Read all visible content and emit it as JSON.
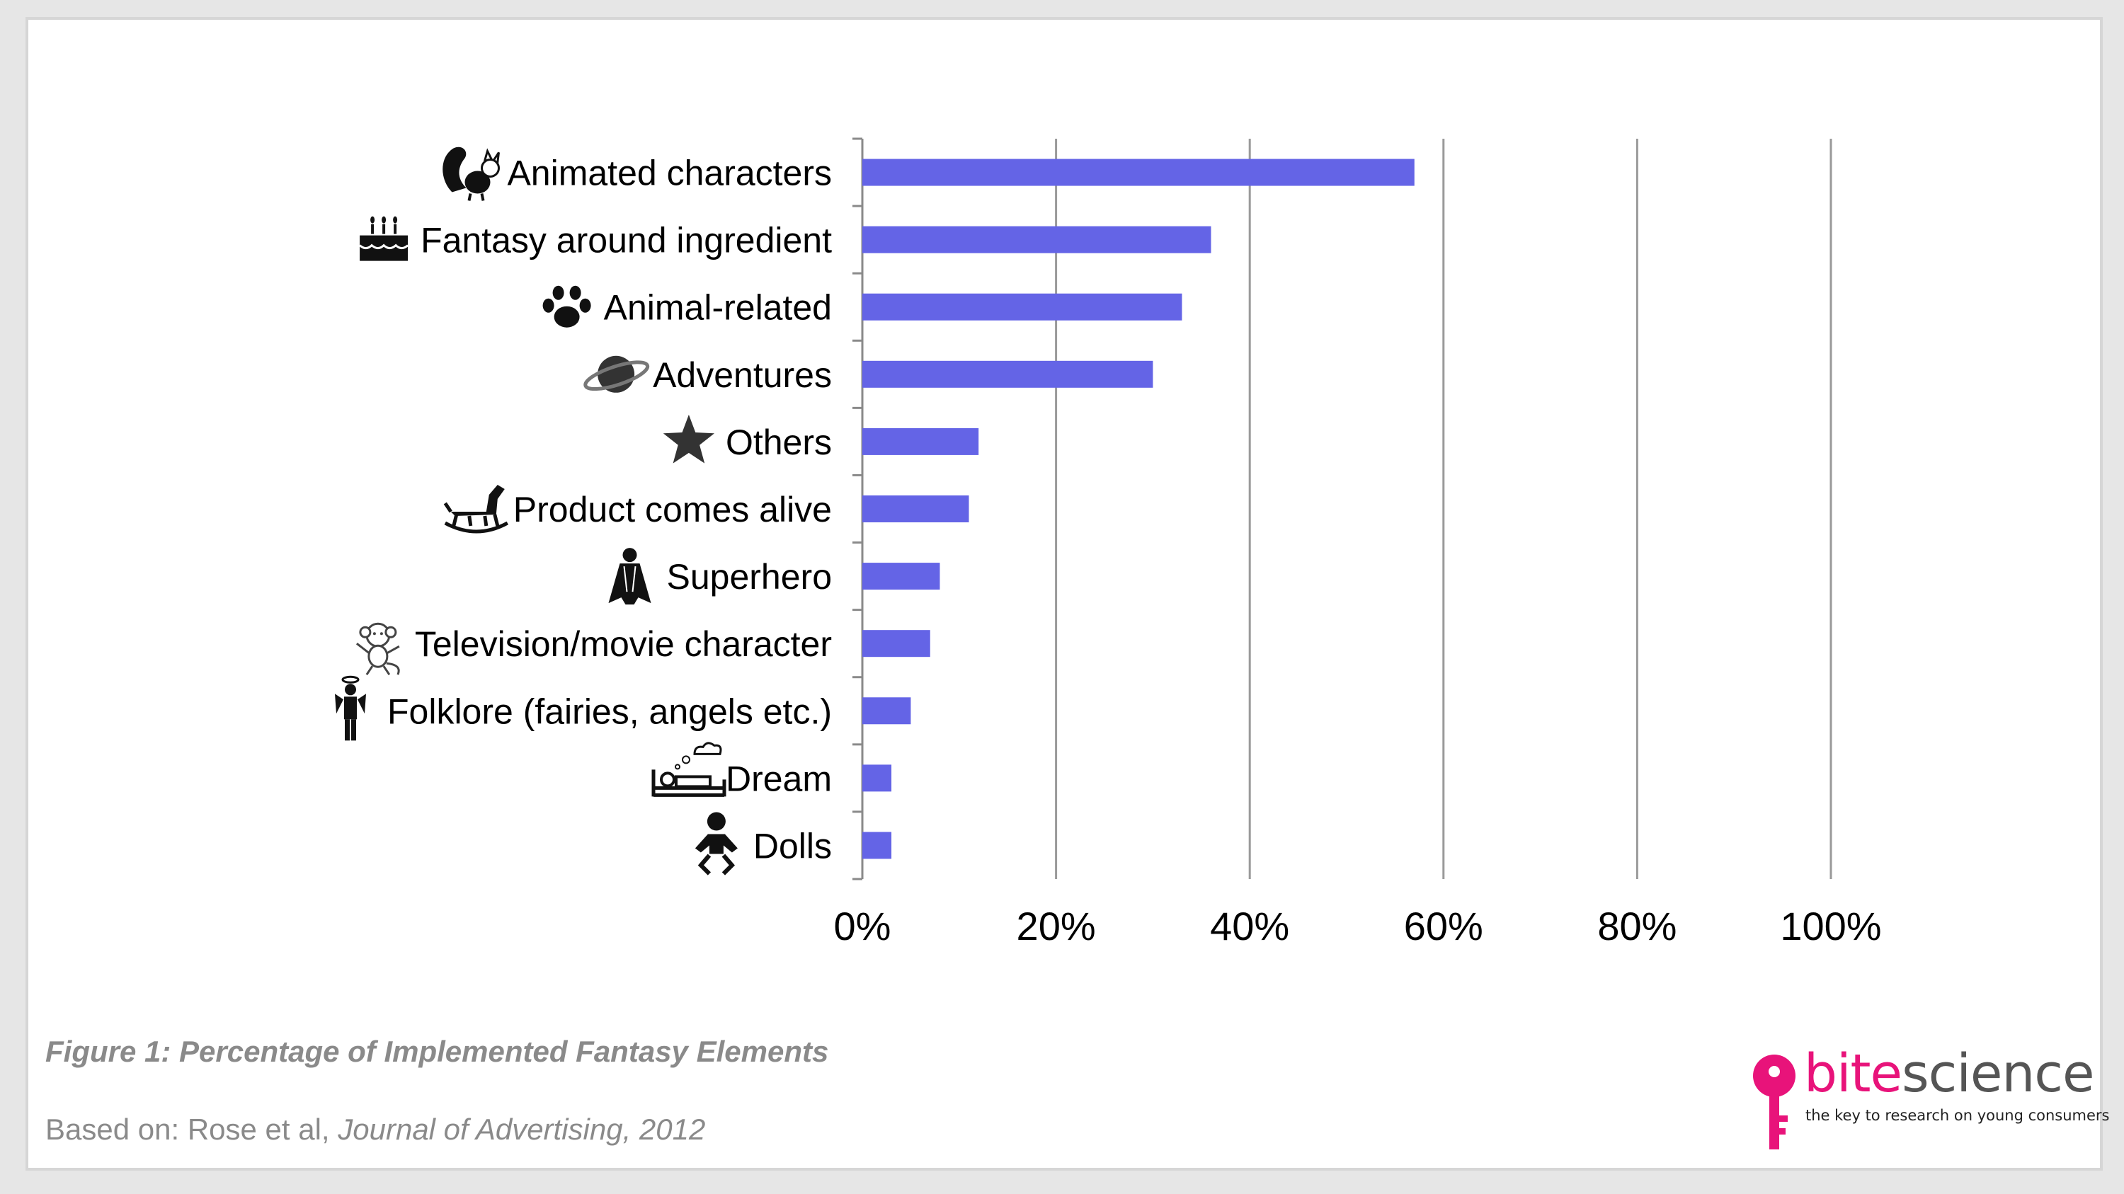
{
  "chart_data": {
    "type": "bar",
    "orientation": "horizontal",
    "categories": [
      "Animated characters",
      "Fantasy around ingredient",
      "Animal-related",
      "Adventures",
      "Others",
      "Product comes alive",
      "Superhero",
      "Television/movie character",
      "Folklore (fairies, angels etc.)",
      "Dream",
      "Dolls"
    ],
    "icons": [
      "skunk-icon",
      "birthday-cake-icon",
      "paw-print-icon",
      "planet-icon",
      "star-icon",
      "rocking-horse-icon",
      "superhero-icon",
      "monkey-character-icon",
      "angel-icon",
      "sleeping-in-bed-icon",
      "baby-doll-icon"
    ],
    "values": [
      57,
      36,
      33,
      30,
      12,
      11,
      8,
      7,
      5,
      3,
      3
    ],
    "xlim": [
      0,
      100
    ],
    "xticks": [
      "0%",
      "20%",
      "40%",
      "60%",
      "80%",
      "100%"
    ],
    "grid": true,
    "bar_color": "#6464e6",
    "title": "",
    "xlabel": "",
    "ylabel": ""
  },
  "caption": {
    "title": "Figure 1: Percentage of Implemented Fantasy Elements",
    "source_prefix": "Based on: Rose et al, ",
    "source_journal": "Journal of Advertising, 2012"
  },
  "logo": {
    "word_part1": "bite",
    "word_part2": "science",
    "tagline": "the key to research on young consumers",
    "brand_color": "#e8137a"
  }
}
